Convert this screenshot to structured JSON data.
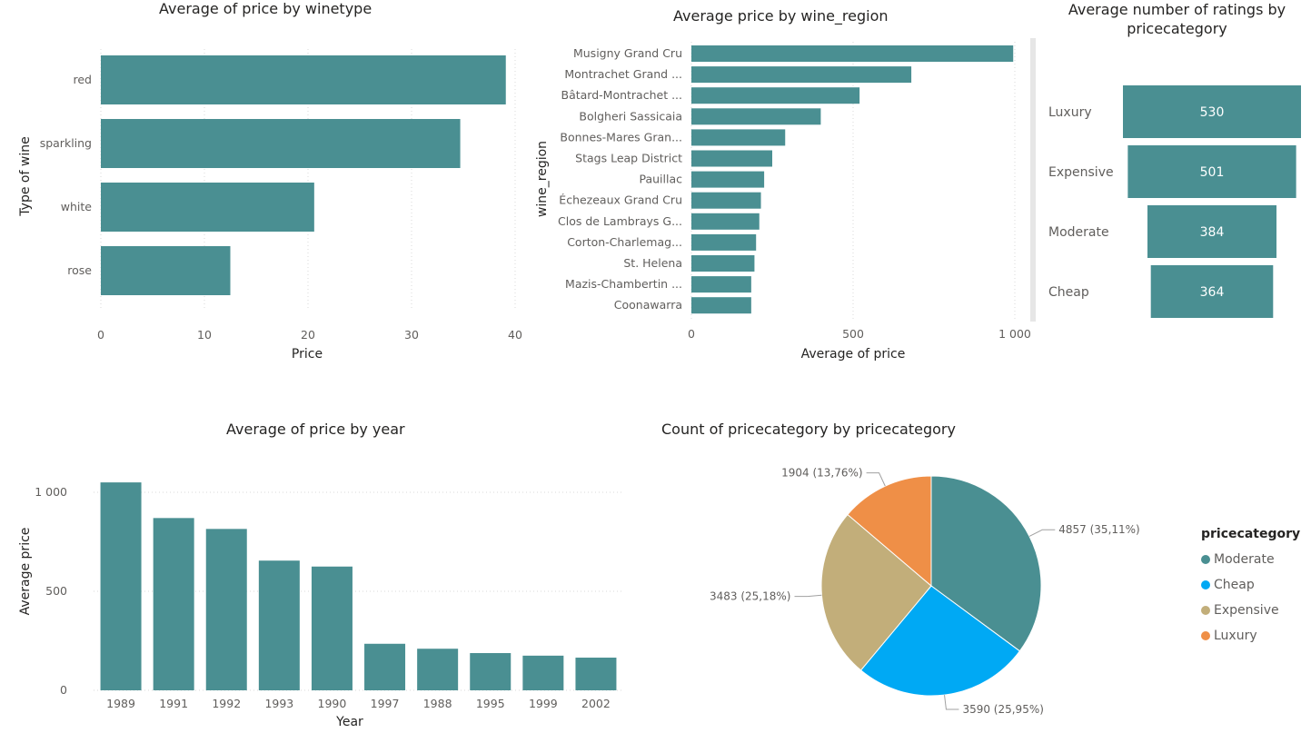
{
  "charts": {
    "winetype": {
      "title": "Average of price by winetype",
      "xlabel": "Price",
      "ylabel": "Type of wine",
      "xticks": [
        "0",
        "10",
        "20",
        "30",
        "40"
      ]
    },
    "region": {
      "title": "Average price by wine_region",
      "xlabel": "Average of price",
      "ylabel": "wine_region",
      "xticks": [
        "0",
        "500",
        "1 000"
      ]
    },
    "ratings": {
      "title_line1": "Average number of ratings by",
      "title_line2": "pricecategory"
    },
    "year": {
      "title": "Average of price by year",
      "xlabel": "Year",
      "ylabel": "Average price",
      "yticks": [
        "0",
        "500",
        "1 000"
      ]
    },
    "pie": {
      "title": "Count of pricecategory by pricecategory",
      "legend_title": "pricecategory"
    }
  },
  "colors": {
    "teal": "#4a8f92",
    "blue": "#00a9f4",
    "tan": "#c2ae7a",
    "orange": "#ef8f47",
    "grid": "#d9d9d9"
  },
  "chart_data": [
    {
      "type": "bar",
      "orientation": "horizontal",
      "title": "Average of price by winetype",
      "xlabel": "Price",
      "ylabel": "Type of wine",
      "categories": [
        "red",
        "sparkling",
        "white",
        "rose"
      ],
      "values": [
        39.1,
        34.7,
        20.6,
        12.5
      ],
      "xlim": [
        0,
        40
      ]
    },
    {
      "type": "bar",
      "orientation": "horizontal",
      "title": "Average price by wine_region",
      "xlabel": "Average of price",
      "ylabel": "wine_region",
      "categories": [
        "Musigny Grand Cru",
        "Montrachet Grand ...",
        "Bâtard-Montrachet ...",
        "Bolgheri Sassicaia",
        "Bonnes-Mares Gran...",
        "Stags Leap District",
        "Pauillac",
        "Échezeaux Grand Cru",
        "Clos de Lambrays G...",
        "Corton-Charlemag...",
        "St. Helena",
        "Mazis-Chambertin ...",
        "Coonawarra"
      ],
      "values": [
        995,
        680,
        520,
        400,
        290,
        250,
        225,
        215,
        210,
        200,
        195,
        185,
        185
      ],
      "xlim": [
        0,
        1000
      ]
    },
    {
      "type": "bar",
      "subtype": "funnel",
      "title": "Average number of ratings by pricecategory",
      "categories": [
        "Luxury",
        "Expensive",
        "Moderate",
        "Cheap"
      ],
      "values": [
        530,
        501,
        384,
        364
      ],
      "value_labels": [
        "530",
        "501",
        "384",
        "364"
      ]
    },
    {
      "type": "bar",
      "title": "Average of price by year",
      "xlabel": "Year",
      "ylabel": "Average price",
      "categories": [
        "1989",
        "1991",
        "1992",
        "1993",
        "1990",
        "1997",
        "1988",
        "1995",
        "1999",
        "2002"
      ],
      "values": [
        1050,
        870,
        815,
        655,
        625,
        235,
        210,
        188,
        175,
        165
      ],
      "ylim": [
        0,
        1000
      ]
    },
    {
      "type": "pie",
      "title": "Count of pricecategory by pricecategory",
      "legend_title": "pricecategory",
      "categories": [
        "Moderate",
        "Cheap",
        "Expensive",
        "Luxury"
      ],
      "values": [
        4857,
        3590,
        3483,
        1904
      ],
      "labels": [
        "4857 (35,11%)",
        "3590 (25,95%)",
        "3483 (25,18%)",
        "1904 (13,76%)"
      ]
    }
  ]
}
